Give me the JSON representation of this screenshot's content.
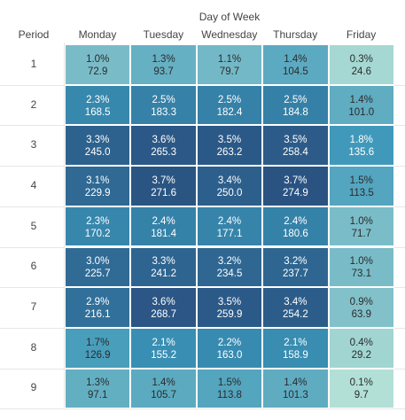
{
  "chart_data": {
    "type": "heatmap",
    "title": "Day of Week",
    "row_header": "Period",
    "columns": [
      "Monday",
      "Tuesday",
      "Wednesday",
      "Thursday",
      "Friday"
    ],
    "rows": [
      "1",
      "2",
      "3",
      "4",
      "5",
      "6",
      "7",
      "8",
      "9"
    ],
    "values": [
      [
        72.9,
        93.7,
        79.7,
        104.5,
        24.6
      ],
      [
        168.5,
        183.3,
        182.4,
        184.8,
        101.0
      ],
      [
        245.0,
        265.3,
        263.2,
        258.4,
        135.6
      ],
      [
        229.9,
        271.6,
        250.0,
        274.9,
        113.5
      ],
      [
        170.2,
        181.4,
        177.1,
        180.6,
        71.7
      ],
      [
        225.7,
        241.2,
        234.5,
        237.7,
        73.1
      ],
      [
        216.1,
        268.7,
        259.9,
        254.2,
        63.9
      ],
      [
        126.9,
        155.2,
        163.0,
        158.9,
        29.2
      ],
      [
        97.1,
        105.7,
        113.8,
        101.3,
        9.7
      ]
    ],
    "value_labels": [
      [
        "72.9",
        "93.7",
        "79.7",
        "104.5",
        "24.6"
      ],
      [
        "168.5",
        "183.3",
        "182.4",
        "184.8",
        "101.0"
      ],
      [
        "245.0",
        "265.3",
        "263.2",
        "258.4",
        "135.6"
      ],
      [
        "229.9",
        "271.6",
        "250.0",
        "274.9",
        "113.5"
      ],
      [
        "170.2",
        "181.4",
        "177.1",
        "180.6",
        "71.7"
      ],
      [
        "225.7",
        "241.2",
        "234.5",
        "237.7",
        "73.1"
      ],
      [
        "216.1",
        "268.7",
        "259.9",
        "254.2",
        "63.9"
      ],
      [
        "126.9",
        "155.2",
        "163.0",
        "158.9",
        "29.2"
      ],
      [
        "97.1",
        "105.7",
        "113.8",
        "101.3",
        "9.7"
      ]
    ],
    "percent_labels": [
      [
        "1.0%",
        "1.3%",
        "1.1%",
        "1.4%",
        "0.3%"
      ],
      [
        "2.3%",
        "2.5%",
        "2.5%",
        "2.5%",
        "1.4%"
      ],
      [
        "3.3%",
        "3.6%",
        "3.5%",
        "3.5%",
        "1.8%"
      ],
      [
        "3.1%",
        "3.7%",
        "3.4%",
        "3.7%",
        "1.5%"
      ],
      [
        "2.3%",
        "2.4%",
        "2.4%",
        "2.4%",
        "1.0%"
      ],
      [
        "3.0%",
        "3.3%",
        "3.2%",
        "3.2%",
        "1.0%"
      ],
      [
        "2.9%",
        "3.6%",
        "3.5%",
        "3.4%",
        "0.9%"
      ],
      [
        "1.7%",
        "2.1%",
        "2.2%",
        "2.1%",
        "0.4%"
      ],
      [
        "1.3%",
        "1.4%",
        "1.5%",
        "1.4%",
        "0.1%"
      ]
    ],
    "color_scale": {
      "min_value": 9.7,
      "max_value": 274.9,
      "low_color": "#b3e0d6",
      "mid_color": "#3a95b8",
      "high_color": "#2a5382"
    }
  }
}
